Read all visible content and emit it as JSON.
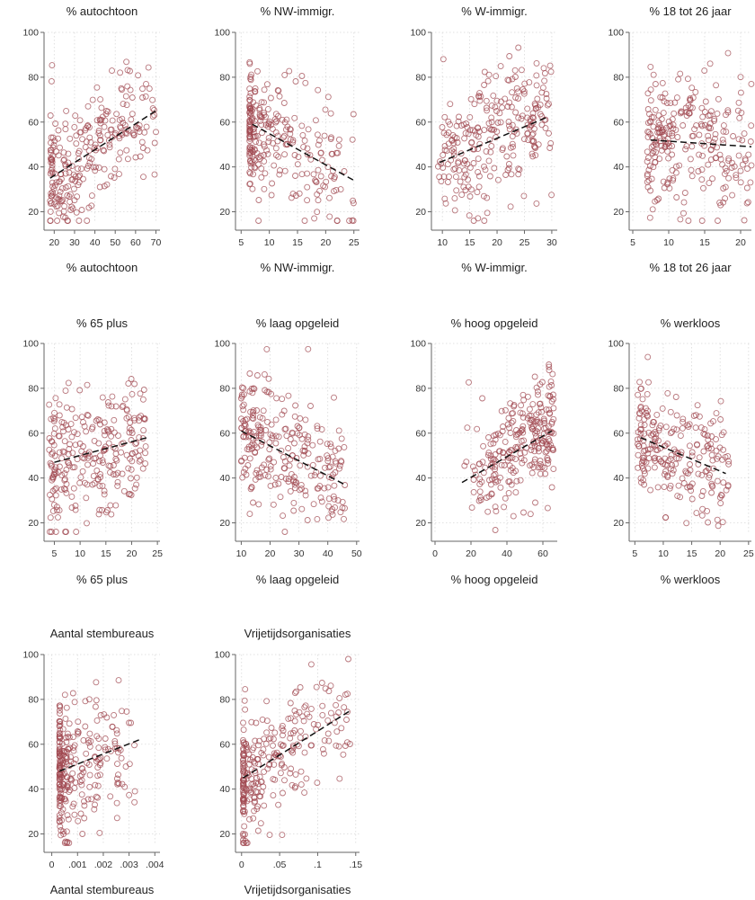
{
  "colors": {
    "marker": "#a04850",
    "fit_line": "#111111",
    "grid": "#d9d9d9"
  },
  "chart_data": [
    {
      "type": "scatter",
      "title": "% autochtoon",
      "xlabel": "% autochtoon",
      "xlim": [
        15,
        72
      ],
      "ylim": [
        15,
        100
      ],
      "grid": true,
      "xticks": [
        {
          "v": 20,
          "label": "20"
        },
        {
          "v": 30,
          "label": "30"
        },
        {
          "v": 40,
          "label": "40"
        },
        {
          "v": 50,
          "label": "50"
        },
        {
          "v": 60,
          "label": "60"
        },
        {
          "v": 70,
          "label": "70"
        }
      ],
      "yticks": [
        {
          "v": 20,
          "label": "20"
        },
        {
          "v": 40,
          "label": "40"
        },
        {
          "v": 60,
          "label": "60"
        },
        {
          "v": 80,
          "label": "80"
        },
        {
          "v": 100,
          "label": "100"
        }
      ],
      "fit": {
        "x0": 18,
        "y0": 35,
        "x1": 70,
        "y1": 65
      },
      "x_range": [
        18,
        70
      ],
      "x_skew": 1.5,
      "y_sd": 14,
      "n": 260,
      "seed": 11
    },
    {
      "type": "scatter",
      "title": "% NW-immigr.",
      "xlabel": "% NW-immigr.",
      "xlim": [
        4,
        26
      ],
      "ylim": [
        15,
        100
      ],
      "grid": true,
      "xticks": [
        {
          "v": 5,
          "label": "5"
        },
        {
          "v": 10,
          "label": "10"
        },
        {
          "v": 15,
          "label": "15"
        },
        {
          "v": 20,
          "label": "20"
        },
        {
          "v": 25,
          "label": "25"
        }
      ],
      "yticks": [
        {
          "v": 20,
          "label": "20"
        },
        {
          "v": 40,
          "label": "40"
        },
        {
          "v": 60,
          "label": "60"
        },
        {
          "v": 80,
          "label": "80"
        },
        {
          "v": 100,
          "label": "100"
        }
      ],
      "fit": {
        "x0": 7,
        "y0": 59,
        "x1": 25,
        "y1": 34
      },
      "x_range": [
        6.5,
        25
      ],
      "x_skew": 2.6,
      "y_sd": 13,
      "n": 260,
      "seed": 23
    },
    {
      "type": "scatter",
      "title": "% W-immigr.",
      "xlabel": "% W-immigr.",
      "xlim": [
        8,
        31
      ],
      "ylim": [
        15,
        100
      ],
      "grid": true,
      "xticks": [
        {
          "v": 10,
          "label": "10"
        },
        {
          "v": 15,
          "label": "15"
        },
        {
          "v": 20,
          "label": "20"
        },
        {
          "v": 25,
          "label": "25"
        },
        {
          "v": 30,
          "label": "30"
        }
      ],
      "yticks": [
        {
          "v": 20,
          "label": "20"
        },
        {
          "v": 40,
          "label": "40"
        },
        {
          "v": 60,
          "label": "60"
        },
        {
          "v": 80,
          "label": "80"
        },
        {
          "v": 100,
          "label": "100"
        }
      ],
      "fit": {
        "x0": 9.5,
        "y0": 42,
        "x1": 29,
        "y1": 62
      },
      "x_range": [
        9,
        30
      ],
      "x_skew": 1.0,
      "y_sd": 15,
      "n": 260,
      "seed": 37
    },
    {
      "type": "scatter",
      "title": "% 18 tot 26 jaar",
      "xlabel": "% 18 tot 26 jaar",
      "xlim": [
        4.5,
        21.5
      ],
      "ylim": [
        15,
        100
      ],
      "grid": true,
      "xticks": [
        {
          "v": 5,
          "label": "5"
        },
        {
          "v": 10,
          "label": "10"
        },
        {
          "v": 15,
          "label": "15"
        },
        {
          "v": 20,
          "label": "20"
        }
      ],
      "yticks": [
        {
          "v": 20,
          "label": "20"
        },
        {
          "v": 40,
          "label": "40"
        },
        {
          "v": 60,
          "label": "60"
        },
        {
          "v": 80,
          "label": "80"
        },
        {
          "v": 100,
          "label": "100"
        }
      ],
      "fit": {
        "x0": 7.5,
        "y0": 52,
        "x1": 21.5,
        "y1": 49
      },
      "x_range": [
        7,
        21.5
      ],
      "x_skew": 1.4,
      "y_sd": 15,
      "n": 260,
      "seed": 53
    },
    {
      "type": "scatter",
      "title": "% 65 plus",
      "xlabel": "% 65 plus",
      "xlim": [
        3,
        25.5
      ],
      "ylim": [
        15,
        100
      ],
      "grid": true,
      "xticks": [
        {
          "v": 5,
          "label": "5"
        },
        {
          "v": 10,
          "label": "10"
        },
        {
          "v": 15,
          "label": "15"
        },
        {
          "v": 20,
          "label": "20"
        },
        {
          "v": 25,
          "label": "25"
        }
      ],
      "yticks": [
        {
          "v": 20,
          "label": "20"
        },
        {
          "v": 40,
          "label": "40"
        },
        {
          "v": 60,
          "label": "60"
        },
        {
          "v": 80,
          "label": "80"
        },
        {
          "v": 100,
          "label": "100"
        }
      ],
      "fit": {
        "x0": 5,
        "y0": 47,
        "x1": 23,
        "y1": 58
      },
      "x_range": [
        4,
        23
      ],
      "x_skew": 1.3,
      "y_sd": 15,
      "n": 260,
      "seed": 71
    },
    {
      "type": "scatter",
      "title": "% laag opgeleid",
      "xlabel": "% laag opgeleid",
      "xlim": [
        8,
        51
      ],
      "ylim": [
        15,
        100
      ],
      "grid": true,
      "xticks": [
        {
          "v": 10,
          "label": "10"
        },
        {
          "v": 20,
          "label": "20"
        },
        {
          "v": 30,
          "label": "30"
        },
        {
          "v": 40,
          "label": "40"
        },
        {
          "v": 50,
          "label": "50"
        }
      ],
      "yticks": [
        {
          "v": 20,
          "label": "20"
        },
        {
          "v": 40,
          "label": "40"
        },
        {
          "v": 60,
          "label": "60"
        },
        {
          "v": 80,
          "label": "80"
        },
        {
          "v": 100,
          "label": "100"
        }
      ],
      "fit": {
        "x0": 10,
        "y0": 61,
        "x1": 46,
        "y1": 37
      },
      "x_range": [
        10,
        46
      ],
      "x_skew": 1.5,
      "y_sd": 14,
      "n": 260,
      "seed": 89
    },
    {
      "type": "scatter",
      "title": "% hoog opgeleid",
      "xlabel": "% hoog opgeleid",
      "xlim": [
        -2,
        68
      ],
      "ylim": [
        15,
        100
      ],
      "grid": true,
      "xticks": [
        {
          "v": 0,
          "label": "0"
        },
        {
          "v": 20,
          "label": "20"
        },
        {
          "v": 40,
          "label": "40"
        },
        {
          "v": 60,
          "label": "60"
        }
      ],
      "yticks": [
        {
          "v": 20,
          "label": "20"
        },
        {
          "v": 40,
          "label": "40"
        },
        {
          "v": 60,
          "label": "60"
        },
        {
          "v": 80,
          "label": "80"
        },
        {
          "v": 100,
          "label": "100"
        }
      ],
      "fit": {
        "x0": 15,
        "y0": 38,
        "x1": 65,
        "y1": 61
      },
      "x_range": [
        14,
        66
      ],
      "x_skew": 0.6,
      "y_sd": 14,
      "n": 260,
      "seed": 97
    },
    {
      "type": "scatter",
      "title": "% werkloos",
      "xlabel": "% werkloos",
      "xlim": [
        4,
        25.5
      ],
      "ylim": [
        15,
        100
      ],
      "grid": true,
      "xticks": [
        {
          "v": 5,
          "label": "5"
        },
        {
          "v": 10,
          "label": "10"
        },
        {
          "v": 15,
          "label": "15"
        },
        {
          "v": 20,
          "label": "20"
        },
        {
          "v": 25,
          "label": "25"
        }
      ],
      "yticks": [
        {
          "v": 20,
          "label": "20"
        },
        {
          "v": 40,
          "label": "40"
        },
        {
          "v": 60,
          "label": "60"
        },
        {
          "v": 80,
          "label": "80"
        },
        {
          "v": 100,
          "label": "100"
        }
      ],
      "fit": {
        "x0": 6,
        "y0": 58,
        "x1": 21,
        "y1": 42
      },
      "x_range": [
        5.5,
        21.5
      ],
      "x_skew": 1.3,
      "y_sd": 13,
      "n": 230,
      "seed": 113
    },
    {
      "type": "scatter",
      "title": "Aantal stembureaus",
      "xlabel": "Aantal stembureaus",
      "xlim": [
        -0.0003,
        0.0042
      ],
      "ylim": [
        15,
        100
      ],
      "grid": true,
      "xticks": [
        {
          "v": 0,
          "label": "0"
        },
        {
          "v": 0.001,
          "label": ".001"
        },
        {
          "v": 0.002,
          "label": ".002"
        },
        {
          "v": 0.003,
          "label": ".003"
        },
        {
          "v": 0.004,
          "label": ".004"
        }
      ],
      "yticks": [
        {
          "v": 20,
          "label": "20"
        },
        {
          "v": 40,
          "label": "40"
        },
        {
          "v": 60,
          "label": "60"
        },
        {
          "v": 80,
          "label": "80"
        },
        {
          "v": 100,
          "label": "100"
        }
      ],
      "fit": {
        "x0": 0.0003,
        "y0": 48,
        "x1": 0.0034,
        "y1": 62
      },
      "x_range": [
        0.0003,
        0.0033
      ],
      "x_skew": 3.2,
      "y_sd": 14,
      "n": 270,
      "seed": 131
    },
    {
      "type": "scatter",
      "title": "Vrijetijdsorganisaties",
      "xlabel": "Vrijetijdsorganisaties",
      "xlim": [
        -0.008,
        0.155
      ],
      "ylim": [
        15,
        100
      ],
      "grid": true,
      "xticks": [
        {
          "v": 0,
          "label": "0"
        },
        {
          "v": 0.05,
          "label": ".05"
        },
        {
          "v": 0.1,
          "label": ".1"
        },
        {
          "v": 0.15,
          "label": ".15"
        }
      ],
      "yticks": [
        {
          "v": 20,
          "label": "20"
        },
        {
          "v": 40,
          "label": "40"
        },
        {
          "v": 60,
          "label": "60"
        },
        {
          "v": 80,
          "label": "80"
        },
        {
          "v": 100,
          "label": "100"
        }
      ],
      "fit": {
        "x0": 0.002,
        "y0": 45,
        "x1": 0.143,
        "y1": 75
      },
      "x_range": [
        0.002,
        0.145
      ],
      "x_skew": 2.6,
      "y_sd": 13,
      "n": 270,
      "seed": 151
    }
  ]
}
